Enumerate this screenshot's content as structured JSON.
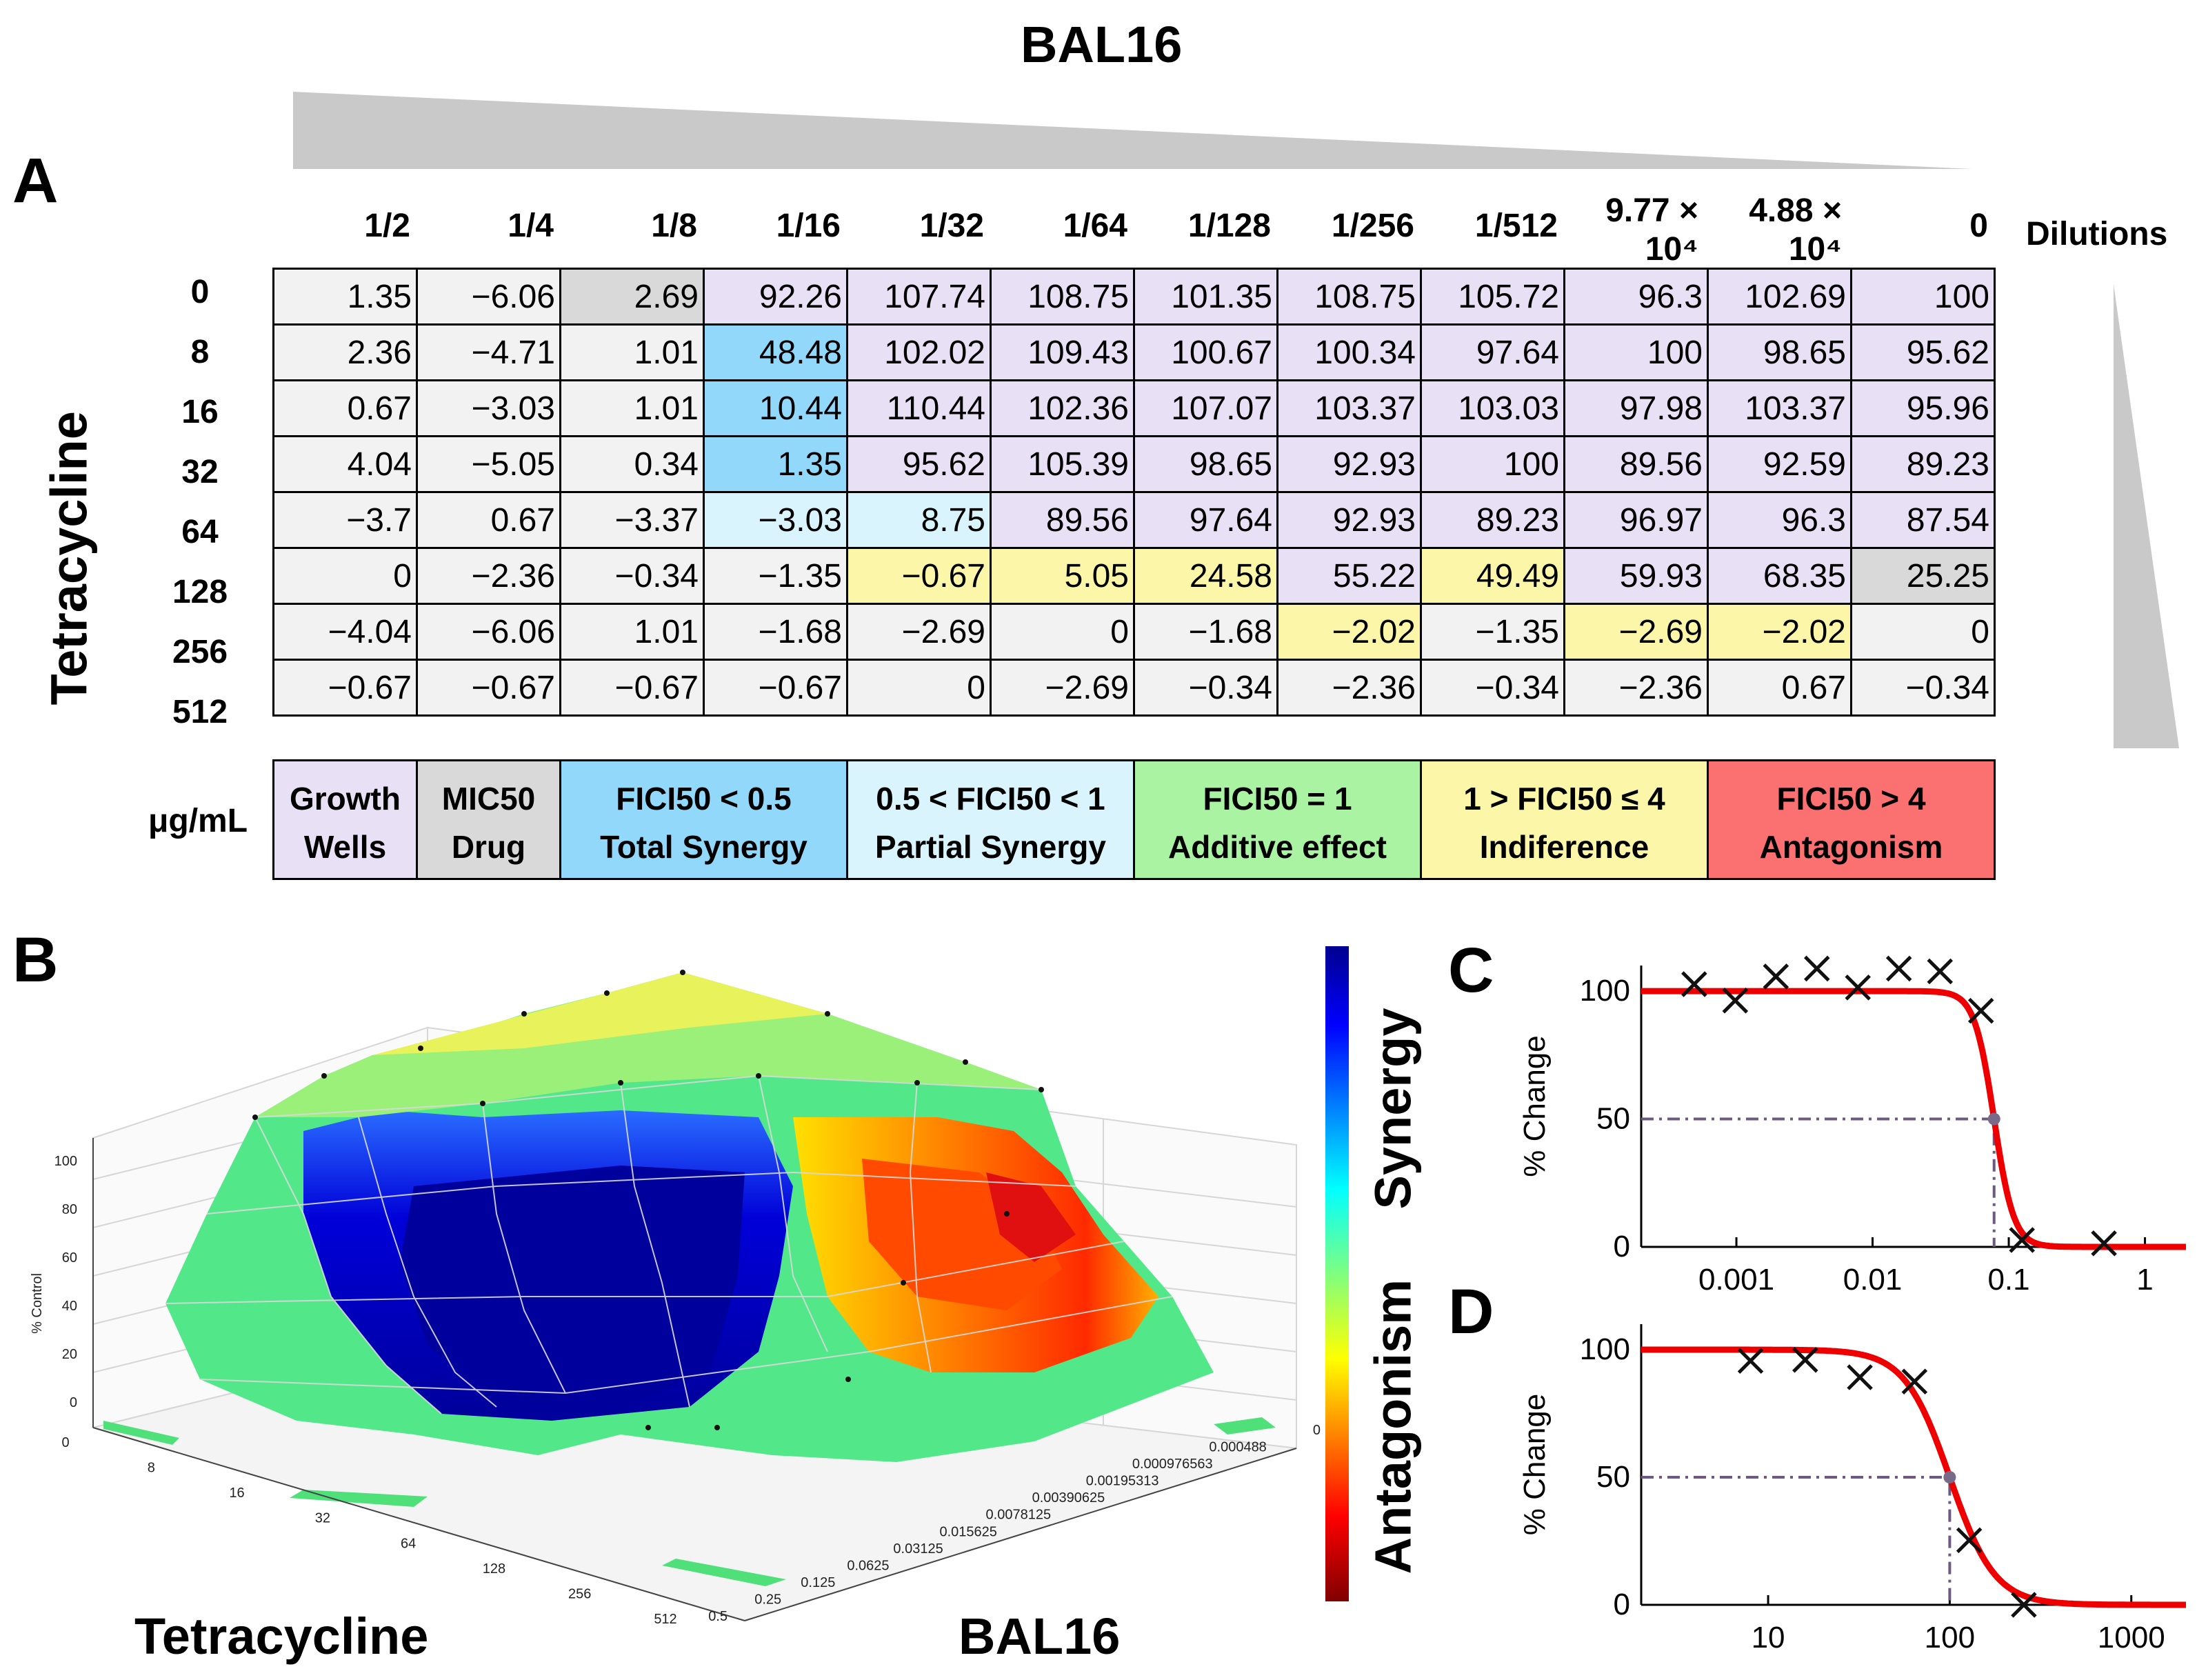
{
  "panel_a": {
    "label": "A",
    "title": "BAL16",
    "dilutions_label": "Dilutions",
    "tetracycline_label": "Tetracycline",
    "unit_label": "μg/mL",
    "columns": [
      "1/2",
      "1/4",
      "1/8",
      "1/16",
      "1/32",
      "1/64",
      "1/128",
      "1/256",
      "1/512",
      "9.77 × 10⁴",
      "4.88 × 10⁴",
      "0"
    ],
    "rows": [
      "0",
      "8",
      "16",
      "32",
      "64",
      "128",
      "256",
      "512"
    ],
    "cells": [
      [
        "1.35",
        "−6.06",
        "2.69",
        "92.26",
        "107.74",
        "108.75",
        "101.35",
        "108.75",
        "105.72",
        "96.3",
        "102.69",
        "100"
      ],
      [
        "2.36",
        "−4.71",
        "1.01",
        "48.48",
        "102.02",
        "109.43",
        "100.67",
        "100.34",
        "97.64",
        "100",
        "98.65",
        "95.62"
      ],
      [
        "0.67",
        "−3.03",
        "1.01",
        "10.44",
        "110.44",
        "102.36",
        "107.07",
        "103.37",
        "103.03",
        "97.98",
        "103.37",
        "95.96"
      ],
      [
        "4.04",
        "−5.05",
        "0.34",
        "1.35",
        "95.62",
        "105.39",
        "98.65",
        "92.93",
        "100",
        "89.56",
        "92.59",
        "89.23"
      ],
      [
        "−3.7",
        "0.67",
        "−3.37",
        "−3.03",
        "8.75",
        "89.56",
        "97.64",
        "92.93",
        "89.23",
        "96.97",
        "96.3",
        "87.54"
      ],
      [
        "0",
        "−2.36",
        "−0.34",
        "−1.35",
        "−0.67",
        "5.05",
        "24.58",
        "55.22",
        "49.49",
        "59.93",
        "68.35",
        "25.25"
      ],
      [
        "−4.04",
        "−6.06",
        "1.01",
        "−1.68",
        "−2.69",
        "0",
        "−1.68",
        "−2.02",
        "−1.35",
        "−2.69",
        "−2.02",
        "0"
      ],
      [
        "−0.67",
        "−0.67",
        "−0.67",
        "−0.67",
        "0",
        "−2.69",
        "−0.34",
        "−2.36",
        "−0.34",
        "−2.36",
        "0.67",
        "−0.34"
      ]
    ],
    "cell_colors": [
      [
        "grey",
        "grey",
        "mic",
        "growth",
        "growth",
        "growth",
        "growth",
        "growth",
        "growth",
        "growth",
        "growth",
        "growth"
      ],
      [
        "grey",
        "grey",
        "grey",
        "total",
        "growth",
        "growth",
        "growth",
        "growth",
        "growth",
        "growth",
        "growth",
        "growth"
      ],
      [
        "grey",
        "grey",
        "grey",
        "total",
        "growth",
        "growth",
        "growth",
        "growth",
        "growth",
        "growth",
        "growth",
        "growth"
      ],
      [
        "grey",
        "grey",
        "grey",
        "total",
        "growth",
        "growth",
        "growth",
        "growth",
        "growth",
        "growth",
        "growth",
        "growth"
      ],
      [
        "grey",
        "grey",
        "grey",
        "partial",
        "partial",
        "growth",
        "growth",
        "growth",
        "growth",
        "growth",
        "growth",
        "growth"
      ],
      [
        "grey",
        "grey",
        "grey",
        "grey",
        "indiff",
        "indiff",
        "indiff",
        "growth",
        "indiff",
        "growth",
        "growth",
        "mic"
      ],
      [
        "grey",
        "grey",
        "grey",
        "grey",
        "grey",
        "grey",
        "grey",
        "indiff",
        "grey",
        "indiff",
        "indiff",
        "grey"
      ],
      [
        "grey",
        "grey",
        "grey",
        "grey",
        "grey",
        "grey",
        "grey",
        "grey",
        "grey",
        "grey",
        "grey",
        "grey"
      ]
    ],
    "palette": {
      "grey": "#f2f2f2",
      "mic": "#d9d9d9",
      "growth": "#e8e0f4",
      "total": "#92d8fb",
      "partial": "#d9f4fd",
      "additive": "#a9f3a3",
      "indiff": "#fbf6a8",
      "antag": "#fb7070"
    },
    "legend": [
      {
        "line1": "Growth",
        "line2": "Wells",
        "color": "growth"
      },
      {
        "line1": "MIC50",
        "line2": "Drug",
        "color": "mic"
      },
      {
        "line1": "FICI50 < 0.5",
        "line2": "Total Synergy",
        "color": "total"
      },
      {
        "line1": "0.5 < FICI50 < 1",
        "line2": "Partial Synergy",
        "color": "partial"
      },
      {
        "line1": "FICI50 = 1",
        "line2": "Additive effect",
        "color": "additive"
      },
      {
        "line1": "1 > FICI50 ≤ 4",
        "line2": "Indiference",
        "color": "indiff"
      },
      {
        "line1": "FICI50 > 4",
        "line2": "Antagonism",
        "color": "antag"
      }
    ]
  },
  "panel_b": {
    "label": "B",
    "z_label": "% Control",
    "z_ticks": [
      "0",
      "20",
      "40",
      "60",
      "80",
      "100"
    ],
    "tetra_ticks": [
      "0",
      "8",
      "16",
      "32",
      "64",
      "128",
      "256",
      "512"
    ],
    "bal_ticks": [
      "0",
      "0.000488",
      "0.000976563",
      "0.00195313",
      "0.00390625",
      "0.0078125",
      "0.015625",
      "0.03125",
      "0.0625",
      "0.125",
      "0.25",
      "0.5"
    ],
    "x_title": "Tetracycline",
    "y_title": "BAL16",
    "colorbar_top": "Synergy",
    "colorbar_bottom": "Antagonism"
  },
  "chart_data": [
    {
      "type": "line",
      "panel": "C",
      "ylabel": "% Change",
      "xscale": "log",
      "xlim": [
        0.0002,
        2
      ],
      "ylim": [
        0,
        110
      ],
      "x_ticks": [
        "0.001",
        "0.01",
        "0.1",
        "1"
      ],
      "y_ticks": [
        "0",
        "50",
        "100"
      ],
      "points_x": [
        0.00049,
        0.00098,
        0.00195,
        0.0039,
        0.0078,
        0.0156,
        0.03125,
        0.0625,
        0.125,
        0.5
      ],
      "points_y": [
        102.7,
        96.3,
        105.7,
        108.8,
        101.4,
        108.8,
        107.7,
        92.3,
        2.7,
        1.4
      ],
      "fit": {
        "top": 100,
        "bottom": 0,
        "ic50": 0.078,
        "hill": 6
      },
      "ic50_marker": [
        0.078,
        50
      ]
    },
    {
      "type": "line",
      "panel": "D",
      "ylabel": "% Change",
      "xscale": "log",
      "xlim": [
        2,
        2000
      ],
      "ylim": [
        0,
        110
      ],
      "x_ticks": [
        "10",
        "100",
        "1000"
      ],
      "y_ticks": [
        "0",
        "50",
        "100"
      ],
      "points_x": [
        8,
        16,
        32,
        64,
        128,
        256
      ],
      "points_y": [
        95.6,
        96.0,
        89.2,
        87.5,
        25.3,
        0
      ],
      "fit": {
        "top": 100,
        "bottom": 0,
        "ic50": 100,
        "hill": 3.5
      },
      "ic50_marker": [
        100,
        50
      ]
    }
  ]
}
